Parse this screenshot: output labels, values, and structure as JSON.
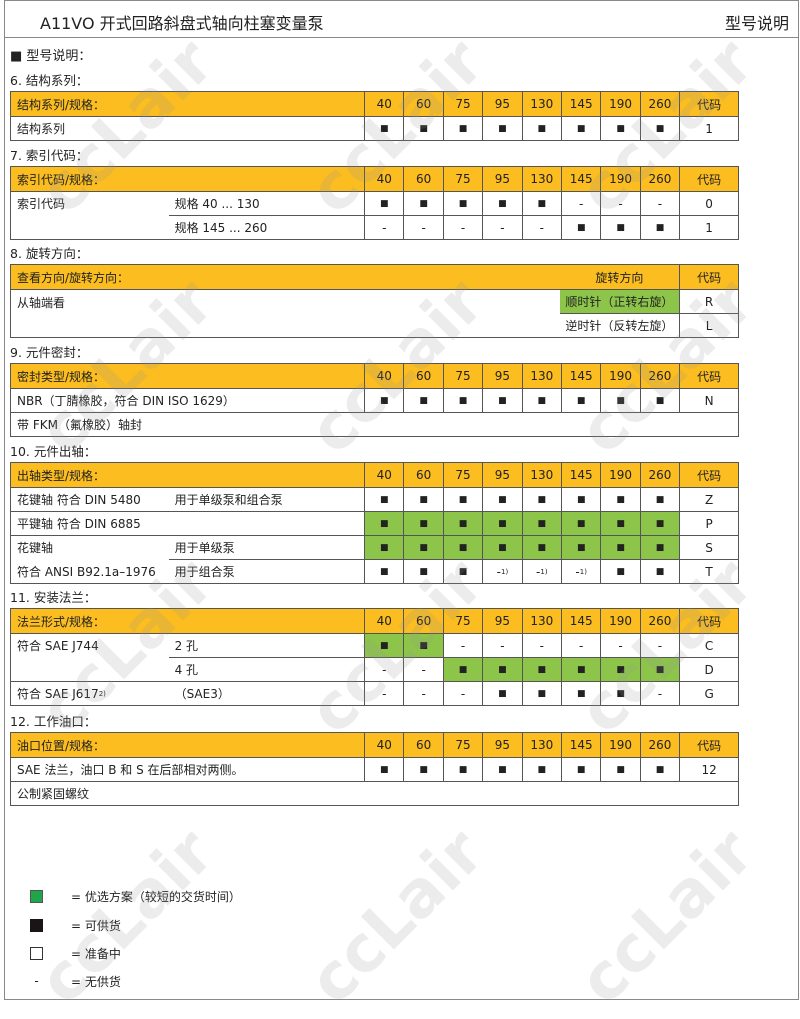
{
  "header": {
    "title": "A11VO 开式回路斜盘式轴向柱塞变量泵",
    "right": "型号说明"
  },
  "intro": "■  型号说明：",
  "colors": {
    "header": "#fbbd1f",
    "preferred": "#8dc54a"
  },
  "sizes": [
    "40",
    "60",
    "75",
    "95",
    "130",
    "145",
    "190",
    "260"
  ],
  "code_header": "代码",
  "sections": [
    {
      "heading": "6.  结构系列：",
      "header_label": "结构系列/规格：",
      "rows": [
        {
          "label": "结构系列",
          "sub": "",
          "cells": [
            "■",
            "■",
            "■",
            "■",
            "■",
            "■",
            "■",
            "■"
          ],
          "green": [
            0,
            0,
            0,
            0,
            0,
            0,
            0,
            0
          ],
          "code": "1"
        }
      ]
    },
    {
      "heading": "7.  索引代码：",
      "header_label": "索引代码/规格：",
      "rows": [
        {
          "label": "索引代码",
          "sub": "规格  40 ... 130",
          "cells": [
            "■",
            "■",
            "■",
            "■",
            "■",
            "-",
            "-",
            "-"
          ],
          "green": [
            0,
            0,
            0,
            0,
            0,
            0,
            0,
            0
          ],
          "code": "0"
        },
        {
          "label": "",
          "sub": "规格  145 ... 260",
          "cont": true,
          "cells": [
            "-",
            "-",
            "-",
            "-",
            "-",
            "■",
            "■",
            "■"
          ],
          "green": [
            0,
            0,
            0,
            0,
            0,
            0,
            0,
            0
          ],
          "code": "1"
        }
      ]
    },
    {
      "heading": "8.  旋转方向：",
      "type": "rotation",
      "header_label": "查看方向/旋转方向：",
      "dir_header": "旋转方向",
      "rows": [
        {
          "label": "从轴端看",
          "dir": "顺时针（正转右旋）",
          "green": true,
          "code": "R"
        },
        {
          "label": "",
          "dir": "逆时针（反转左旋）",
          "green": false,
          "code": "L"
        }
      ]
    },
    {
      "heading": "9.  元件密封：",
      "header_label": "密封类型/规格：",
      "rows": [
        {
          "label": "NBR（丁腈橡胶，符合 DIN ISO 1629）",
          "sub": "",
          "cells": [
            "■",
            "■",
            "■",
            "■",
            "■",
            "■",
            "■",
            "■"
          ],
          "green": [
            0,
            0,
            0,
            0,
            0,
            0,
            0,
            0
          ],
          "code": "N"
        },
        {
          "wide": "带 FKM（氟橡胶）轴封"
        }
      ]
    },
    {
      "heading": "10. 元件出轴：",
      "header_label": "出轴类型/规格：",
      "rows": [
        {
          "label": "花键轴   符合  DIN 5480",
          "sub": "用于单级泵和组合泵",
          "cells": [
            "■",
            "■",
            "■",
            "■",
            "■",
            "■",
            "■",
            "■"
          ],
          "green": [
            0,
            0,
            0,
            0,
            0,
            0,
            0,
            0
          ],
          "code": "Z"
        },
        {
          "label": "平键轴   符合  DIN 6885",
          "sub": "",
          "cells": [
            "■",
            "■",
            "■",
            "■",
            "■",
            "■",
            "■",
            "■"
          ],
          "green": [
            1,
            1,
            1,
            1,
            1,
            1,
            1,
            1
          ],
          "code": "P"
        },
        {
          "label": "花键轴",
          "sub": "用于单级泵",
          "cells": [
            "■",
            "■",
            "■",
            "■",
            "■",
            "■",
            "■",
            "■"
          ],
          "green": [
            1,
            1,
            1,
            1,
            1,
            1,
            1,
            1
          ],
          "code": "S"
        },
        {
          "label": "符合  ANSI B92.1a–1976",
          "sub": "用于组合泵",
          "cont": true,
          "cells": [
            "■",
            "■",
            "■",
            "-",
            "-",
            "-",
            "■",
            "■"
          ],
          "notes": [
            "",
            "",
            "",
            "1)",
            "1)",
            "1)",
            "",
            ""
          ],
          "green": [
            0,
            0,
            0,
            0,
            0,
            0,
            0,
            0
          ],
          "code": "T"
        }
      ]
    },
    {
      "heading": "11. 安装法兰：",
      "header_label": "法兰形式/规格：",
      "rows": [
        {
          "label": "符合 SAE J744",
          "sub": "2 孔",
          "cells": [
            "■",
            "■",
            "-",
            "-",
            "-",
            "-",
            "-",
            "-"
          ],
          "green": [
            1,
            1,
            0,
            0,
            0,
            0,
            0,
            0
          ],
          "code": "C"
        },
        {
          "label": "",
          "sub": "4 孔",
          "cont": true,
          "cells": [
            "-",
            "-",
            "■",
            "■",
            "■",
            "■",
            "■",
            "■"
          ],
          "green": [
            0,
            0,
            1,
            1,
            1,
            1,
            1,
            1
          ],
          "code": "D"
        },
        {
          "label": "符合 SAE J617",
          "label_note": "2)",
          "sub": "（SAE3）",
          "cells": [
            "-",
            "-",
            "-",
            "■",
            "■",
            "■",
            "■",
            "-"
          ],
          "green": [
            0,
            0,
            0,
            0,
            0,
            0,
            0,
            0
          ],
          "code": "G"
        }
      ]
    },
    {
      "heading": "12. 工作油口：",
      "header_label": "油口位置/规格：",
      "rows": [
        {
          "label": "SAE 法兰，油口 B 和 S 在后部相对两侧。",
          "sub": "",
          "cells": [
            "■",
            "■",
            "■",
            "■",
            "■",
            "■",
            "■",
            "■"
          ],
          "green": [
            0,
            0,
            0,
            0,
            0,
            0,
            0,
            0
          ],
          "code": "12"
        },
        {
          "wide": "公制紧固螺纹"
        }
      ]
    }
  ],
  "legend": [
    {
      "symbol": "green-square",
      "text": "=  优选方案（较短的交货时间）"
    },
    {
      "symbol": "black-square",
      "text": "=  可供货"
    },
    {
      "symbol": "empty-square",
      "text": "=  准备中"
    },
    {
      "symbol": "dash",
      "text": "=  无供货"
    }
  ],
  "watermark": "ccLair"
}
